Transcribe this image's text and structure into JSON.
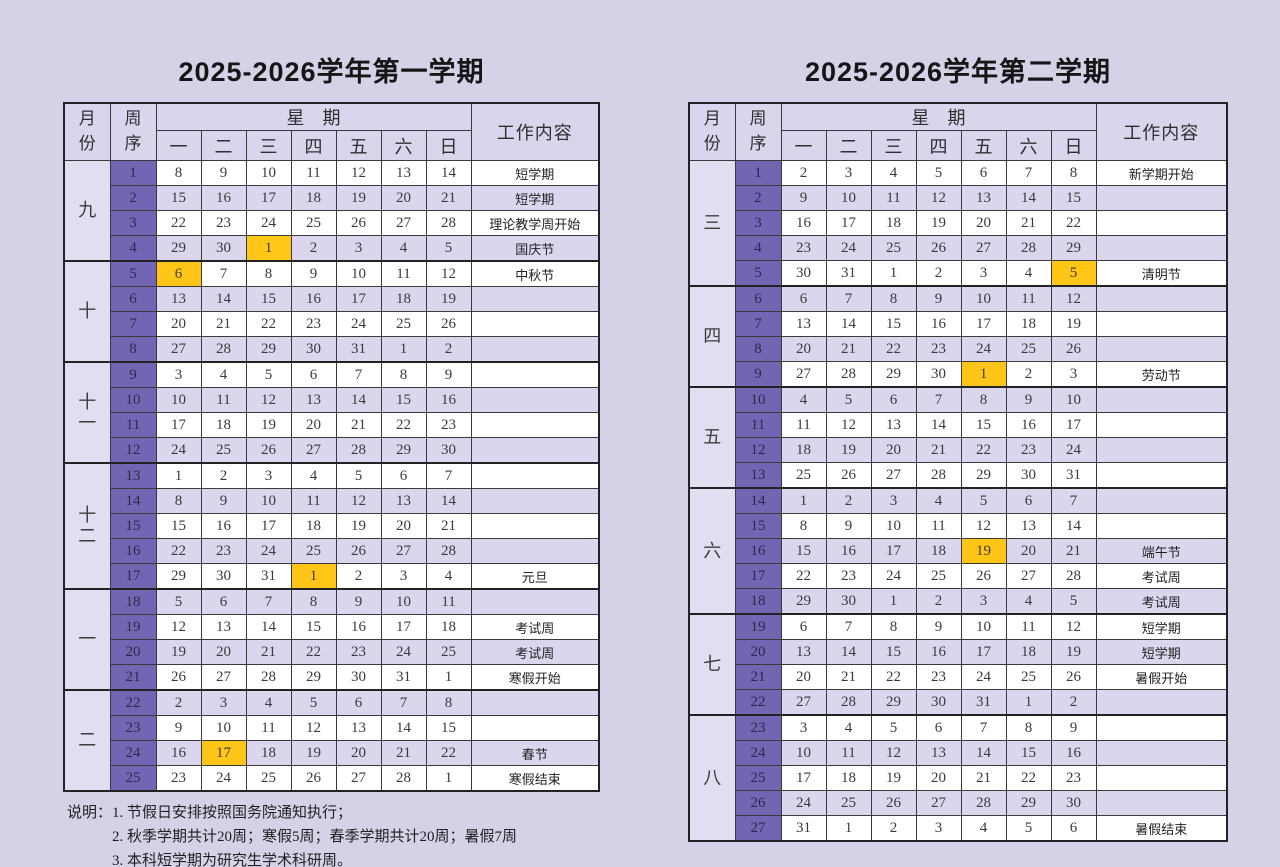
{
  "semester1": {
    "title": "2025-2026学年第一学期",
    "header": {
      "month": "月份",
      "week": "周序",
      "weekday_group": "星　期",
      "days": [
        "一",
        "二",
        "三",
        "四",
        "五",
        "六",
        "日"
      ],
      "work": "工作内容"
    },
    "months": [
      {
        "label": "九",
        "span": 4
      },
      {
        "label": "十",
        "span": 4
      },
      {
        "label": "十一",
        "span": 4
      },
      {
        "label": "十二",
        "span": 5
      },
      {
        "label": "一",
        "span": 4
      },
      {
        "label": "二",
        "span": 4
      }
    ],
    "rows": [
      {
        "week": "1",
        "days": [
          "8",
          "9",
          "10",
          "11",
          "12",
          "13",
          "14"
        ],
        "work": "短学期",
        "highlight": null
      },
      {
        "week": "2",
        "days": [
          "15",
          "16",
          "17",
          "18",
          "19",
          "20",
          "21"
        ],
        "work": "短学期",
        "highlight": null
      },
      {
        "week": "3",
        "days": [
          "22",
          "23",
          "24",
          "25",
          "26",
          "27",
          "28"
        ],
        "work": "理论教学周开始",
        "highlight": null
      },
      {
        "week": "4",
        "days": [
          "29",
          "30",
          "1",
          "2",
          "3",
          "4",
          "5"
        ],
        "work": "国庆节",
        "highlight": 2
      },
      {
        "week": "5",
        "days": [
          "6",
          "7",
          "8",
          "9",
          "10",
          "11",
          "12"
        ],
        "work": "中秋节",
        "highlight": 0
      },
      {
        "week": "6",
        "days": [
          "13",
          "14",
          "15",
          "16",
          "17",
          "18",
          "19"
        ],
        "work": "",
        "highlight": null
      },
      {
        "week": "7",
        "days": [
          "20",
          "21",
          "22",
          "23",
          "24",
          "25",
          "26"
        ],
        "work": "",
        "highlight": null
      },
      {
        "week": "8",
        "days": [
          "27",
          "28",
          "29",
          "30",
          "31",
          "1",
          "2"
        ],
        "work": "",
        "highlight": null
      },
      {
        "week": "9",
        "days": [
          "3",
          "4",
          "5",
          "6",
          "7",
          "8",
          "9"
        ],
        "work": "",
        "highlight": null
      },
      {
        "week": "10",
        "days": [
          "10",
          "11",
          "12",
          "13",
          "14",
          "15",
          "16"
        ],
        "work": "",
        "highlight": null
      },
      {
        "week": "11",
        "days": [
          "17",
          "18",
          "19",
          "20",
          "21",
          "22",
          "23"
        ],
        "work": "",
        "highlight": null
      },
      {
        "week": "12",
        "days": [
          "24",
          "25",
          "26",
          "27",
          "28",
          "29",
          "30"
        ],
        "work": "",
        "highlight": null
      },
      {
        "week": "13",
        "days": [
          "1",
          "2",
          "3",
          "4",
          "5",
          "6",
          "7"
        ],
        "work": "",
        "highlight": null
      },
      {
        "week": "14",
        "days": [
          "8",
          "9",
          "10",
          "11",
          "12",
          "13",
          "14"
        ],
        "work": "",
        "highlight": null
      },
      {
        "week": "15",
        "days": [
          "15",
          "16",
          "17",
          "18",
          "19",
          "20",
          "21"
        ],
        "work": "",
        "highlight": null
      },
      {
        "week": "16",
        "days": [
          "22",
          "23",
          "24",
          "25",
          "26",
          "27",
          "28"
        ],
        "work": "",
        "highlight": null
      },
      {
        "week": "17",
        "days": [
          "29",
          "30",
          "31",
          "1",
          "2",
          "3",
          "4"
        ],
        "work": "元旦",
        "highlight": 3
      },
      {
        "week": "18",
        "days": [
          "5",
          "6",
          "7",
          "8",
          "9",
          "10",
          "11"
        ],
        "work": "",
        "highlight": null
      },
      {
        "week": "19",
        "days": [
          "12",
          "13",
          "14",
          "15",
          "16",
          "17",
          "18"
        ],
        "work": "考试周",
        "highlight": null
      },
      {
        "week": "20",
        "days": [
          "19",
          "20",
          "21",
          "22",
          "23",
          "24",
          "25"
        ],
        "work": "考试周",
        "highlight": null
      },
      {
        "week": "21",
        "days": [
          "26",
          "27",
          "28",
          "29",
          "30",
          "31",
          "1"
        ],
        "work": "寒假开始",
        "highlight": null
      },
      {
        "week": "22",
        "days": [
          "2",
          "3",
          "4",
          "5",
          "6",
          "7",
          "8"
        ],
        "work": "",
        "highlight": null
      },
      {
        "week": "23",
        "days": [
          "9",
          "10",
          "11",
          "12",
          "13",
          "14",
          "15"
        ],
        "work": "",
        "highlight": null
      },
      {
        "week": "24",
        "days": [
          "16",
          "17",
          "18",
          "19",
          "20",
          "21",
          "22"
        ],
        "work": "春节",
        "highlight": 1
      },
      {
        "week": "25",
        "days": [
          "23",
          "24",
          "25",
          "26",
          "27",
          "28",
          "1"
        ],
        "work": "寒假结束",
        "highlight": null
      }
    ]
  },
  "semester2": {
    "title": "2025-2026学年第二学期",
    "header": {
      "month": "月份",
      "week": "周序",
      "weekday_group": "星　期",
      "days": [
        "一",
        "二",
        "三",
        "四",
        "五",
        "六",
        "日"
      ],
      "work": "工作内容"
    },
    "months": [
      {
        "label": "三",
        "span": 5
      },
      {
        "label": "四",
        "span": 4
      },
      {
        "label": "五",
        "span": 4
      },
      {
        "label": "六",
        "span": 5
      },
      {
        "label": "七",
        "span": 4
      },
      {
        "label": "八",
        "span": 5
      }
    ],
    "rows": [
      {
        "week": "1",
        "days": [
          "2",
          "3",
          "4",
          "5",
          "6",
          "7",
          "8"
        ],
        "work": "新学期开始",
        "highlight": null
      },
      {
        "week": "2",
        "days": [
          "9",
          "10",
          "11",
          "12",
          "13",
          "14",
          "15"
        ],
        "work": "",
        "highlight": null
      },
      {
        "week": "3",
        "days": [
          "16",
          "17",
          "18",
          "19",
          "20",
          "21",
          "22"
        ],
        "work": "",
        "highlight": null
      },
      {
        "week": "4",
        "days": [
          "23",
          "24",
          "25",
          "26",
          "27",
          "28",
          "29"
        ],
        "work": "",
        "highlight": null
      },
      {
        "week": "5",
        "days": [
          "30",
          "31",
          "1",
          "2",
          "3",
          "4",
          "5"
        ],
        "work": "清明节",
        "highlight": 6
      },
      {
        "week": "6",
        "days": [
          "6",
          "7",
          "8",
          "9",
          "10",
          "11",
          "12"
        ],
        "work": "",
        "highlight": null
      },
      {
        "week": "7",
        "days": [
          "13",
          "14",
          "15",
          "16",
          "17",
          "18",
          "19"
        ],
        "work": "",
        "highlight": null
      },
      {
        "week": "8",
        "days": [
          "20",
          "21",
          "22",
          "23",
          "24",
          "25",
          "26"
        ],
        "work": "",
        "highlight": null
      },
      {
        "week": "9",
        "days": [
          "27",
          "28",
          "29",
          "30",
          "1",
          "2",
          "3"
        ],
        "work": "劳动节",
        "highlight": 4
      },
      {
        "week": "10",
        "days": [
          "4",
          "5",
          "6",
          "7",
          "8",
          "9",
          "10"
        ],
        "work": "",
        "highlight": null
      },
      {
        "week": "11",
        "days": [
          "11",
          "12",
          "13",
          "14",
          "15",
          "16",
          "17"
        ],
        "work": "",
        "highlight": null
      },
      {
        "week": "12",
        "days": [
          "18",
          "19",
          "20",
          "21",
          "22",
          "23",
          "24"
        ],
        "work": "",
        "highlight": null
      },
      {
        "week": "13",
        "days": [
          "25",
          "26",
          "27",
          "28",
          "29",
          "30",
          "31"
        ],
        "work": "",
        "highlight": null
      },
      {
        "week": "14",
        "days": [
          "1",
          "2",
          "3",
          "4",
          "5",
          "6",
          "7"
        ],
        "work": "",
        "highlight": null
      },
      {
        "week": "15",
        "days": [
          "8",
          "9",
          "10",
          "11",
          "12",
          "13",
          "14"
        ],
        "work": "",
        "highlight": null
      },
      {
        "week": "16",
        "days": [
          "15",
          "16",
          "17",
          "18",
          "19",
          "20",
          "21"
        ],
        "work": "端午节",
        "highlight": 4
      },
      {
        "week": "17",
        "days": [
          "22",
          "23",
          "24",
          "25",
          "26",
          "27",
          "28"
        ],
        "work": "考试周",
        "highlight": null
      },
      {
        "week": "18",
        "days": [
          "29",
          "30",
          "1",
          "2",
          "3",
          "4",
          "5"
        ],
        "work": "考试周",
        "highlight": null
      },
      {
        "week": "19",
        "days": [
          "6",
          "7",
          "8",
          "9",
          "10",
          "11",
          "12"
        ],
        "work": "短学期",
        "highlight": null
      },
      {
        "week": "20",
        "days": [
          "13",
          "14",
          "15",
          "16",
          "17",
          "18",
          "19"
        ],
        "work": "短学期",
        "highlight": null
      },
      {
        "week": "21",
        "days": [
          "20",
          "21",
          "22",
          "23",
          "24",
          "25",
          "26"
        ],
        "work": "暑假开始",
        "highlight": null
      },
      {
        "week": "22",
        "days": [
          "27",
          "28",
          "29",
          "30",
          "31",
          "1",
          "2"
        ],
        "work": "",
        "highlight": null
      },
      {
        "week": "23",
        "days": [
          "3",
          "4",
          "5",
          "6",
          "7",
          "8",
          "9"
        ],
        "work": "",
        "highlight": null
      },
      {
        "week": "24",
        "days": [
          "10",
          "11",
          "12",
          "13",
          "14",
          "15",
          "16"
        ],
        "work": "",
        "highlight": null
      },
      {
        "week": "25",
        "days": [
          "17",
          "18",
          "19",
          "20",
          "21",
          "22",
          "23"
        ],
        "work": "",
        "highlight": null
      },
      {
        "week": "26",
        "days": [
          "24",
          "25",
          "26",
          "27",
          "28",
          "29",
          "30"
        ],
        "work": "",
        "highlight": null
      },
      {
        "week": "27",
        "days": [
          "31",
          "1",
          "2",
          "3",
          "4",
          "5",
          "6"
        ],
        "work": "暑假结束",
        "highlight": null
      }
    ]
  },
  "notes": {
    "label": "说明：",
    "items": [
      "1. 节假日安排按照国务院通知执行；",
      "2. 秋季学期共计20周；寒假5周；春季学期共计20周；暑假7周",
      "3. 本科短学期为研究生学术科研周。"
    ]
  },
  "colors": {
    "page_background": "#d7d1e7",
    "week_column": "#7266b4",
    "alt_row": "#dbd5ee",
    "month_column": "#e2def1",
    "holiday_highlight": "#ffc517",
    "header_background": "#dad4ec",
    "border": "#222222"
  }
}
